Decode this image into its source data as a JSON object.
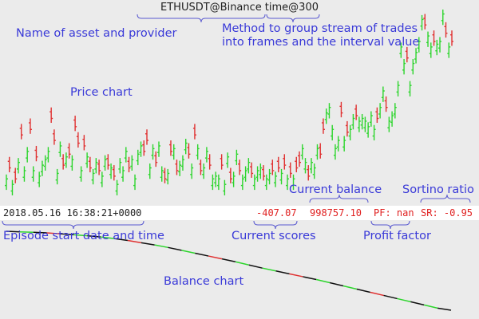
{
  "header": {
    "asset": "ETHUSDT@Binance",
    "method": "time@300"
  },
  "annotations": {
    "name_of_asset": "Name of asset and provider",
    "method_line1": "Method to group stream of trades",
    "method_line2": "into frames and the interval value",
    "price_chart": "Price chart",
    "current_balance": "Current balance",
    "sortino_ratio": "Sortino ratio",
    "episode_start": "Episode start date and time",
    "current_scores": "Current scores",
    "profit_factor": "Profit factor",
    "balance_chart": "Balance chart"
  },
  "status": {
    "datetime": "2018.05.16 16:38:21+0000",
    "score": "-407.07",
    "balance": "998757.10",
    "pf": "PF: nan",
    "sr": "SR: -0.95"
  },
  "colors": {
    "up": "#2dd52d",
    "down": "#e03030",
    "annotation": "#3a3ad8",
    "brace": "#5a5ad0",
    "balance_line": "#111111"
  },
  "chart_data": [
    {
      "type": "ohlc",
      "name": "price",
      "bars": [
        [
          3.0,
          1
        ],
        [
          5.0,
          -1
        ],
        [
          2.0,
          1
        ],
        [
          3.0,
          -1
        ],
        [
          6.0,
          1
        ],
        [
          11.0,
          -1
        ],
        [
          4.5,
          1
        ],
        [
          8.0,
          1
        ],
        [
          12.0,
          -1
        ],
        [
          4.5,
          1
        ],
        [
          7.0,
          -1
        ],
        [
          3.5,
          1
        ],
        [
          5.5,
          1
        ],
        [
          6.5,
          1
        ],
        [
          8.0,
          1
        ],
        [
          14.0,
          -1
        ],
        [
          10.0,
          -1
        ],
        [
          4.0,
          1
        ],
        [
          9.0,
          1
        ],
        [
          5.5,
          -1
        ],
        [
          7.0,
          1
        ],
        [
          7.5,
          -1
        ],
        [
          6.5,
          1
        ],
        [
          12.5,
          -1
        ],
        [
          9.5,
          -1
        ],
        [
          4.5,
          1
        ],
        [
          9.0,
          -1
        ],
        [
          7.0,
          1
        ],
        [
          5.0,
          -1
        ],
        [
          4.0,
          1
        ],
        [
          6.0,
          1
        ],
        [
          4.5,
          -1
        ],
        [
          3.5,
          1
        ],
        [
          6.5,
          1
        ],
        [
          5.5,
          -1
        ],
        [
          5.0,
          1
        ],
        [
          3.5,
          -1
        ],
        [
          2.0,
          1
        ],
        [
          6.0,
          1
        ],
        [
          4.5,
          1
        ],
        [
          8.0,
          1
        ],
        [
          5.0,
          -1
        ],
        [
          6.5,
          1
        ],
        [
          3.0,
          1
        ],
        [
          7.5,
          1
        ],
        [
          9.0,
          1
        ],
        [
          8.0,
          -1
        ],
        [
          10.0,
          -1
        ],
        [
          5.0,
          1
        ],
        [
          8.5,
          1
        ],
        [
          6.0,
          -1
        ],
        [
          9.0,
          1
        ],
        [
          4.5,
          1
        ],
        [
          3.0,
          -1
        ],
        [
          4.0,
          1
        ],
        [
          8.0,
          -1
        ],
        [
          8.5,
          1
        ],
        [
          4.5,
          -1
        ],
        [
          5.5,
          1
        ],
        [
          6.5,
          1
        ],
        [
          9.5,
          1
        ],
        [
          7.5,
          -1
        ],
        [
          5.0,
          1
        ],
        [
          11.0,
          -1
        ],
        [
          8.5,
          1
        ],
        [
          4.5,
          -1
        ],
        [
          5.0,
          1
        ],
        [
          8.0,
          1
        ],
        [
          5.5,
          -1
        ],
        [
          3.0,
          1
        ],
        [
          3.5,
          1
        ],
        [
          3.0,
          1
        ],
        [
          5.5,
          -1
        ],
        [
          2.0,
          1
        ],
        [
          7.0,
          1
        ],
        [
          3.0,
          -1
        ],
        [
          3.5,
          1
        ],
        [
          7.5,
          1
        ],
        [
          4.5,
          -1
        ],
        [
          3.0,
          1
        ],
        [
          4.5,
          1
        ],
        [
          6.0,
          1
        ],
        [
          4.0,
          -1
        ],
        [
          3.0,
          1
        ],
        [
          4.5,
          1
        ],
        [
          5.0,
          1
        ],
        [
          3.5,
          -1
        ],
        [
          3.0,
          1
        ],
        [
          4.0,
          1
        ],
        [
          4.5,
          -1
        ],
        [
          3.5,
          1
        ],
        [
          5.0,
          -1
        ],
        [
          4.0,
          1
        ],
        [
          5.5,
          -1
        ],
        [
          3.0,
          1
        ],
        [
          4.0,
          -1
        ],
        [
          3.0,
          1
        ],
        [
          5.0,
          -1
        ],
        [
          6.0,
          -1
        ],
        [
          8.5,
          1
        ],
        [
          6.0,
          1
        ],
        [
          3.5,
          -1
        ],
        [
          6.0,
          1
        ],
        [
          5.0,
          1
        ],
        [
          8.5,
          1
        ],
        [
          7.5,
          -1
        ],
        [
          12.0,
          -1
        ],
        [
          15.0,
          1
        ],
        [
          16.0,
          1
        ],
        [
          12.0,
          1
        ],
        [
          8.5,
          1
        ],
        [
          10.0,
          1
        ],
        [
          15.0,
          -1
        ],
        [
          10.0,
          1
        ],
        [
          11.5,
          -1
        ],
        [
          12.0,
          1
        ],
        [
          14.0,
          1
        ],
        [
          14.5,
          -1
        ],
        [
          13.5,
          1
        ],
        [
          14.0,
          1
        ],
        [
          13.5,
          1
        ],
        [
          12.5,
          1
        ],
        [
          14.5,
          1
        ],
        [
          12.0,
          1
        ],
        [
          14.0,
          -1
        ],
        [
          16.0,
          1
        ],
        [
          19.0,
          1
        ],
        [
          16.0,
          -1
        ],
        [
          13.5,
          1
        ],
        [
          14.5,
          1
        ],
        [
          16.0,
          1
        ],
        [
          20.0,
          1
        ],
        [
          27.0,
          1
        ],
        [
          24.0,
          1
        ],
        [
          25.0,
          -1
        ],
        [
          20.0,
          1
        ],
        [
          24.0,
          1
        ],
        [
          26.0,
          1
        ],
        [
          28.0,
          1
        ],
        [
          32.0,
          1
        ],
        [
          31.0,
          -1
        ],
        [
          29.0,
          1
        ],
        [
          27.0,
          1
        ],
        [
          28.0,
          -1
        ],
        [
          27.5,
          1
        ],
        [
          28.0,
          1
        ],
        [
          33.0,
          1
        ],
        [
          29.5,
          -1
        ],
        [
          27.0,
          1
        ],
        [
          28.0,
          -1
        ]
      ]
    },
    {
      "type": "line",
      "name": "balance",
      "y": [
        1000000,
        999990,
        999985,
        999975,
        999960,
        999945,
        999930,
        999910,
        999885,
        999855,
        999820,
        999785,
        999745,
        999700,
        999655,
        999610,
        999565,
        999520,
        999470,
        999420,
        999375,
        999330,
        999285,
        999240,
        999190,
        999140,
        999090,
        999040,
        998990,
        998940,
        998890,
        998840,
        998790,
        998757
      ]
    }
  ]
}
